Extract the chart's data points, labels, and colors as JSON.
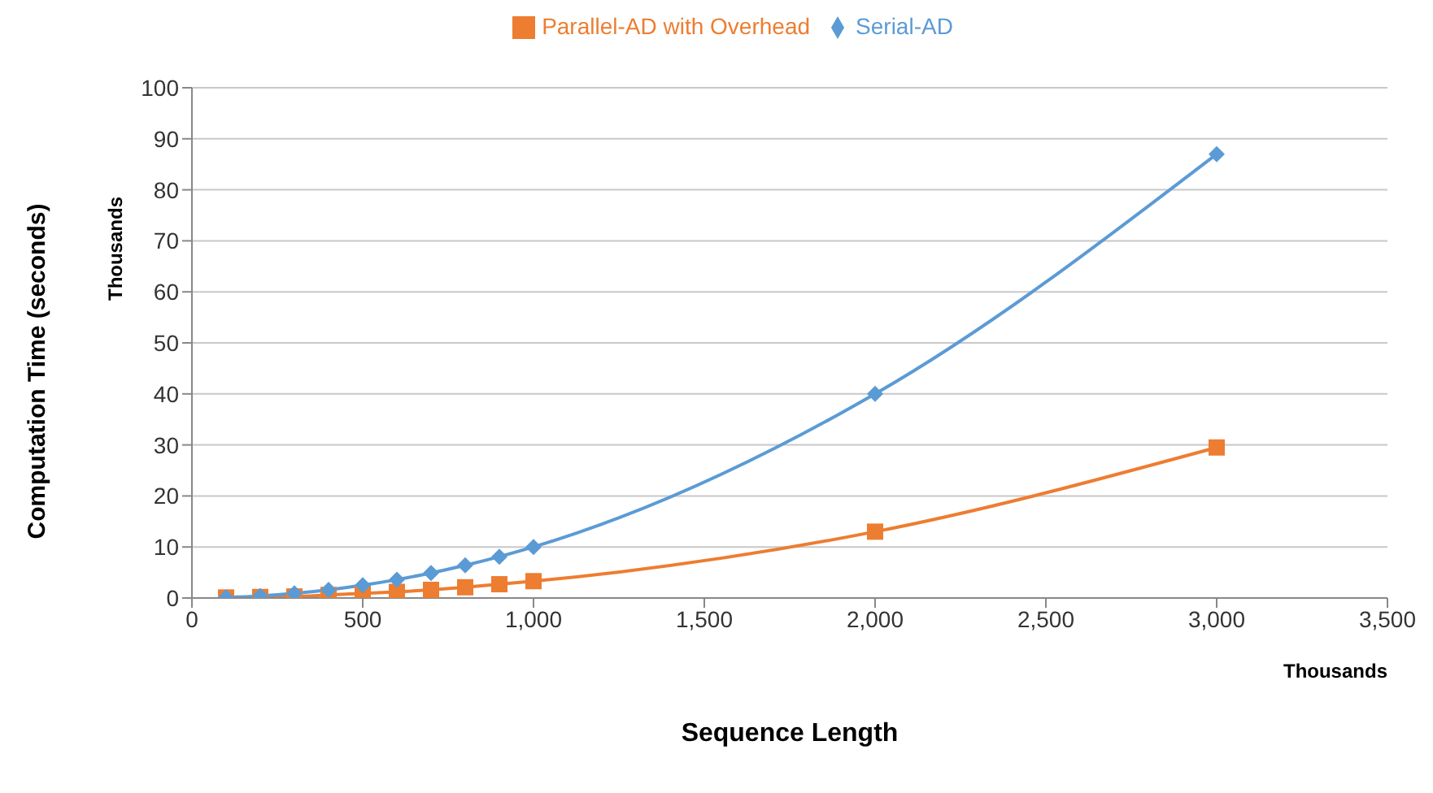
{
  "chart_data": {
    "type": "line",
    "xlabel": "Sequence Length",
    "ylabel": "Computation Time (seconds)",
    "annotations": [
      "Thousands",
      "Thousands"
    ],
    "x": [
      100,
      200,
      300,
      400,
      500,
      600,
      700,
      800,
      900,
      1000,
      2000,
      3000
    ],
    "series": [
      {
        "name": "Serial-AD",
        "color": "#5b9bd5",
        "marker": "diamond",
        "values": [
          0.1,
          0.4,
          0.9,
          1.6,
          2.5,
          3.6,
          4.9,
          6.4,
          8.1,
          10,
          40,
          87
        ]
      },
      {
        "name": "Parallel-AD with Overhead",
        "color": "#ed7d31",
        "marker": "square",
        "values": [
          0.1,
          0.2,
          0.3,
          0.6,
          0.9,
          1.2,
          1.6,
          2.1,
          2.7,
          3.3,
          13,
          29.5
        ]
      }
    ],
    "xlim": [
      0,
      3500
    ],
    "xticks": [
      {
        "value": 0,
        "label": "0"
      },
      {
        "value": 500,
        "label": "500"
      },
      {
        "value": 1000,
        "label": "1,000"
      },
      {
        "value": 1500,
        "label": "1,500"
      },
      {
        "value": 2000,
        "label": "2,000"
      },
      {
        "value": 2500,
        "label": "2,500"
      },
      {
        "value": 3000,
        "label": "3,000"
      },
      {
        "value": 3500,
        "label": "3,500"
      }
    ],
    "ylim": [
      0,
      100
    ],
    "yticks": [
      0,
      10,
      20,
      30,
      40,
      50,
      60,
      70,
      80,
      90,
      100
    ],
    "grid": "y",
    "legend": "top"
  }
}
